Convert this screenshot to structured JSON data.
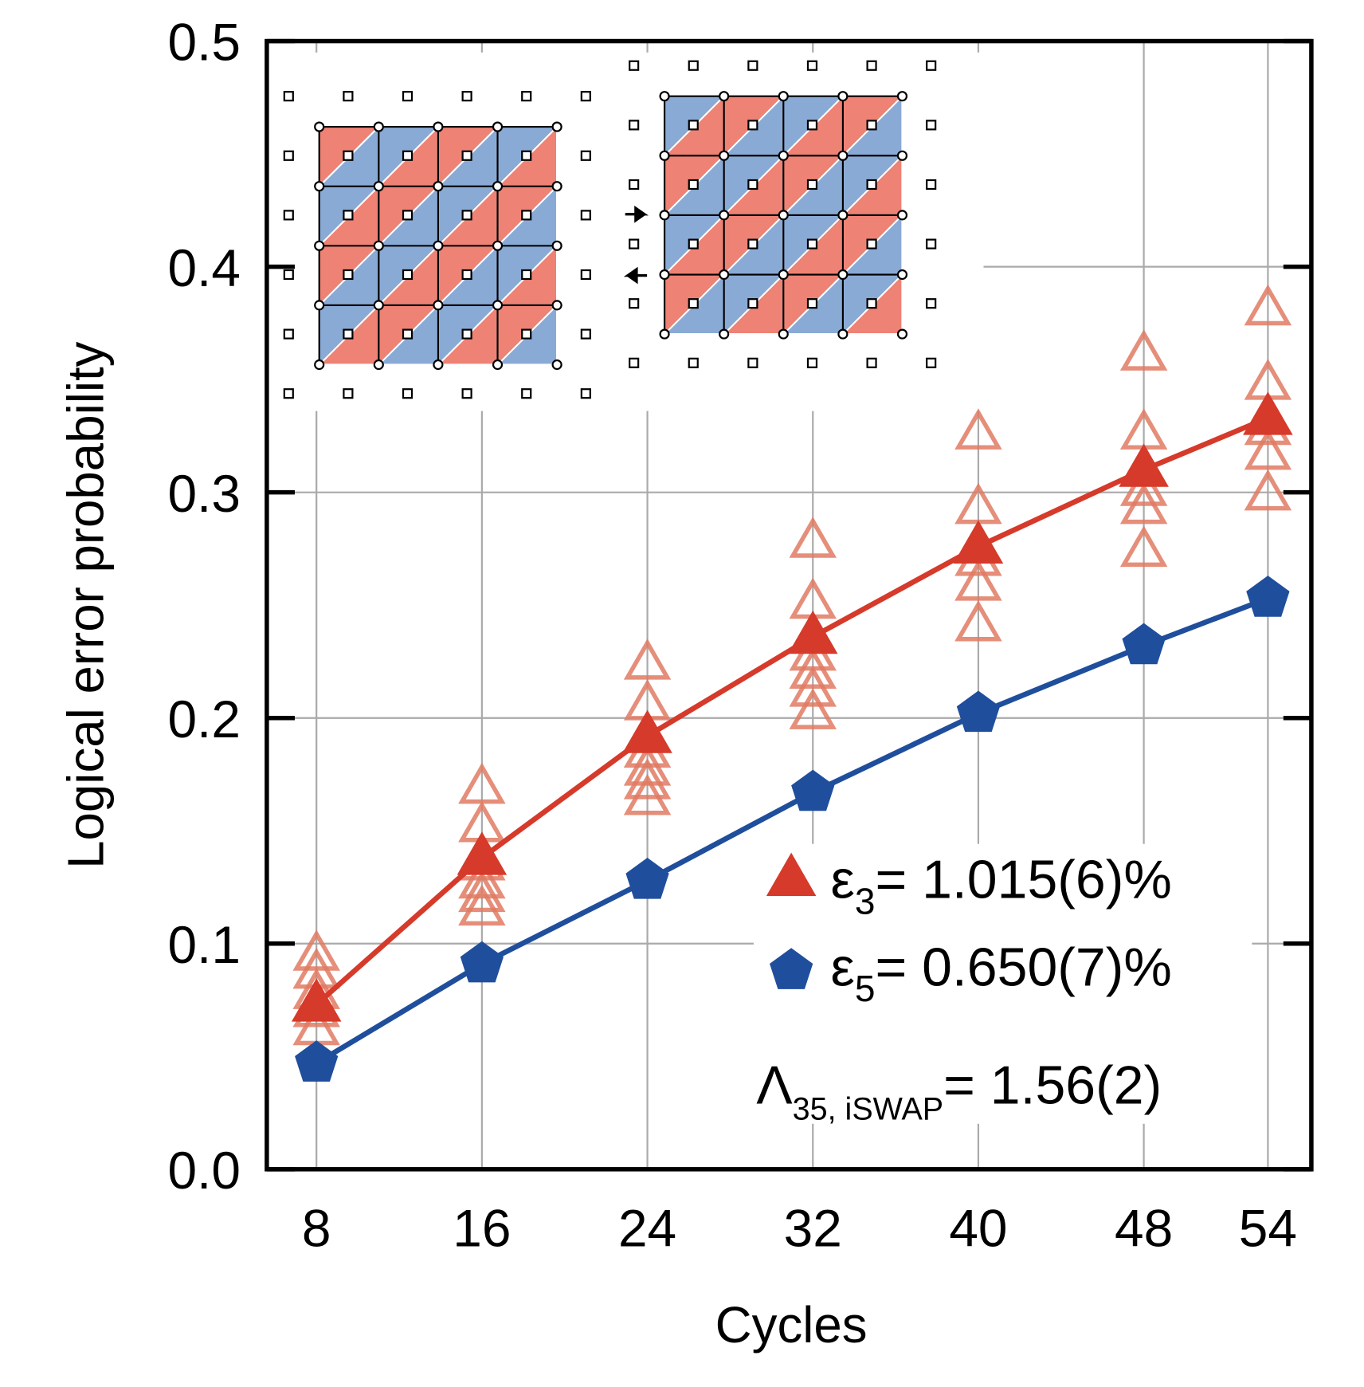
{
  "chart_data": {
    "type": "line",
    "xlabel": "Cycles",
    "ylabel": "Logical error probability",
    "xlim": [
      5.6,
      56.1
    ],
    "xticks": [
      8,
      16,
      24,
      32,
      40,
      48,
      54
    ],
    "ylim": [
      0,
      0.5
    ],
    "yticks": [
      {
        "value": 0,
        "label": "0.0"
      },
      0.1,
      0.2,
      0.3,
      0.4,
      0.5
    ],
    "grid": true,
    "series": [
      {
        "marker": "open-triangle",
        "color": "#e07a63",
        "x": [
          8,
          8,
          8,
          8,
          8,
          16,
          16,
          16,
          16,
          16,
          16,
          24,
          24,
          24,
          24,
          24,
          24,
          32,
          32,
          32,
          32,
          32,
          32,
          40,
          40,
          40,
          40,
          40,
          48,
          48,
          48,
          48,
          48,
          54,
          54,
          54,
          54,
          54
        ],
        "values": [
          0.095,
          0.087,
          0.078,
          0.07,
          0.062,
          0.169,
          0.152,
          0.135,
          0.127,
          0.121,
          0.115,
          0.224,
          0.206,
          0.185,
          0.177,
          0.171,
          0.164,
          0.278,
          0.251,
          0.228,
          0.22,
          0.212,
          0.202,
          0.326,
          0.293,
          0.27,
          0.259,
          0.241,
          0.361,
          0.326,
          0.301,
          0.293,
          0.274,
          0.381,
          0.348,
          0.328,
          0.317,
          0.299
        ]
      },
      {
        "marker": "triangle",
        "color": "#d63a2a",
        "symbol": "ε",
        "subscript": "3",
        "name": "= 1.015(6)%",
        "x": [
          8,
          16,
          24,
          32,
          40,
          48,
          54
        ],
        "values": [
          0.073,
          0.138,
          0.192,
          0.236,
          0.276,
          0.31,
          0.333
        ]
      },
      {
        "marker": "pentagon",
        "color": "#1f4e9c",
        "symbol": "ε",
        "subscript": "5",
        "name": "= 0.650(7)%",
        "x": [
          8,
          16,
          24,
          32,
          40,
          48,
          54
        ],
        "values": [
          0.047,
          0.091,
          0.128,
          0.167,
          0.202,
          0.232,
          0.253
        ]
      }
    ],
    "annotation": {
      "symbol": "Λ",
      "subscript": "35, iSWAP",
      "text": "= 1.56(2)"
    }
  }
}
